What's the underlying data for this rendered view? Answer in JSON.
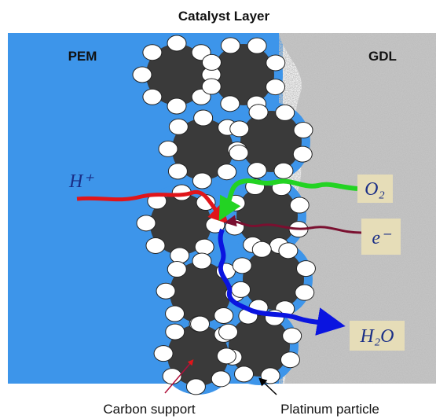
{
  "title": "Catalyst Layer",
  "regions": {
    "left": "PEM",
    "right": "GDL"
  },
  "species": {
    "proton": "H⁺",
    "oxygen": "O₂",
    "electron": "e⁻",
    "water": "H₂O"
  },
  "labels": {
    "carbon": "Carbon support",
    "platinum": "Platinum particle"
  }
}
